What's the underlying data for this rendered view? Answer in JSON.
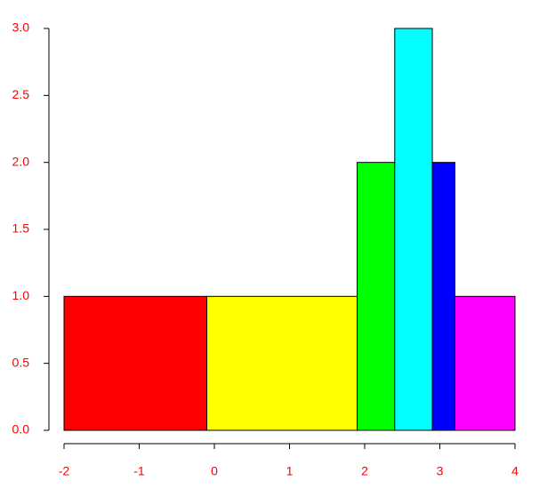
{
  "chart_data": {
    "type": "histogram",
    "bins": [
      -2,
      -0.1,
      1.9,
      2.4,
      2.9,
      3.2,
      4
    ],
    "counts": [
      1,
      1,
      2,
      3,
      2,
      1
    ],
    "colors": [
      "#ff0000",
      "#ffff00",
      "#00ff00",
      "#00ffff",
      "#0000ff",
      "#ff00ff"
    ],
    "xlim": [
      -2,
      4
    ],
    "xticks": [
      -2,
      -1,
      0,
      1,
      2,
      3,
      4
    ],
    "ylim": [
      0,
      3
    ],
    "yticks": [
      {
        "value": 0,
        "label": "0.0"
      },
      {
        "value": 0.5,
        "label": "0.5"
      },
      {
        "value": 1,
        "label": "1.0"
      },
      {
        "value": 1.5,
        "label": "1.5"
      },
      {
        "value": 2,
        "label": "2.0"
      },
      {
        "value": 2.5,
        "label": "2.5"
      },
      {
        "value": 3,
        "label": "3.0"
      }
    ]
  }
}
